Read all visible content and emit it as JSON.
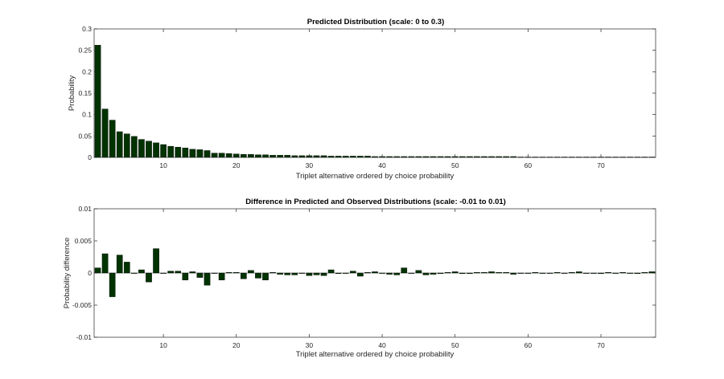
{
  "colors": {
    "bar": "#003300",
    "axis": "#262626",
    "background": "#ffffff"
  },
  "chart_data": [
    {
      "type": "bar",
      "title": "Predicted Distribution (scale: 0 to 0.3)",
      "xlabel": "Triplet alternative ordered by choice probability",
      "ylabel": "Probability",
      "xlim": [
        0.5,
        77.5
      ],
      "ylim": [
        0,
        0.3
      ],
      "xticks": [
        10,
        20,
        30,
        40,
        50,
        60,
        70
      ],
      "yticks": [
        0,
        0.05,
        0.1,
        0.15,
        0.2,
        0.25,
        0.3
      ],
      "ytick_labels": [
        "0",
        "0.05",
        "0.1",
        "0.15",
        "0.2",
        "0.25",
        "0.3"
      ],
      "grid": false,
      "values": [
        0.262,
        0.113,
        0.087,
        0.06,
        0.055,
        0.049,
        0.042,
        0.038,
        0.034,
        0.03,
        0.026,
        0.024,
        0.022,
        0.019,
        0.018,
        0.016,
        0.01,
        0.01,
        0.009,
        0.008,
        0.007,
        0.007,
        0.006,
        0.006,
        0.005,
        0.005,
        0.005,
        0.004,
        0.004,
        0.004,
        0.004,
        0.004,
        0.003,
        0.003,
        0.003,
        0.003,
        0.003,
        0.003,
        0.002,
        0.002,
        0.002,
        0.002,
        0.002,
        0.002,
        0.002,
        0.002,
        0.002,
        0.002,
        0.002,
        0.002,
        0.002,
        0.002,
        0.002,
        0.002,
        0.002,
        0.002,
        0.002,
        0.002,
        0.001,
        0.001,
        0.001,
        0.001,
        0.001,
        0.001,
        0.001,
        0.001,
        0.001,
        0.001,
        0.001,
        0.001,
        0.001,
        0.001,
        0.001,
        0.001,
        0.001,
        0.001,
        0.001
      ]
    },
    {
      "type": "bar",
      "title": "Difference in Predicted and Observed Distributions (scale: -0.01 to 0.01)",
      "xlabel": "Triplet alternative ordered by choice probability",
      "ylabel": "Probability difference",
      "xlim": [
        0.5,
        77.5
      ],
      "ylim": [
        -0.01,
        0.01
      ],
      "xticks": [
        10,
        20,
        30,
        40,
        50,
        60,
        70
      ],
      "yticks": [
        -0.01,
        -0.005,
        0,
        0.005,
        0.01
      ],
      "ytick_labels": [
        "-0.01",
        "-0.005",
        "0",
        "0.005",
        "0.01"
      ],
      "grid": false,
      "values": [
        0.0008,
        0.003,
        -0.0037,
        0.0028,
        0.0017,
        0.0,
        0.0005,
        -0.0014,
        0.0038,
        0.0,
        0.0003,
        0.0003,
        -0.0011,
        0.0002,
        -0.0007,
        -0.0019,
        0.0,
        -0.0011,
        0.0001,
        0.0001,
        -0.0009,
        0.0004,
        -0.0008,
        -0.0011,
        0.0001,
        -0.0002,
        -0.0003,
        -0.0003,
        0.0,
        -0.0004,
        -0.0003,
        -0.0004,
        0.0005,
        -0.0001,
        0.0,
        0.0003,
        -0.0005,
        0.0001,
        0.0002,
        0.0,
        -0.0002,
        -0.0003,
        0.0008,
        0.0,
        0.0004,
        -0.0003,
        -0.0002,
        -0.0001,
        0.0001,
        0.0002,
        -0.0001,
        -0.0001,
        0.0001,
        0.0001,
        0.0002,
        0.0001,
        0.0001,
        -0.0002,
        0.0,
        0.0,
        0.0001,
        0.0,
        0.0,
        0.0001,
        0.0,
        0.0001,
        0.0002,
        0.0,
        0.0,
        -0.0001,
        0.0001,
        0.0,
        0.0001,
        0.0,
        -0.0001,
        0.0001,
        0.0002
      ]
    }
  ]
}
